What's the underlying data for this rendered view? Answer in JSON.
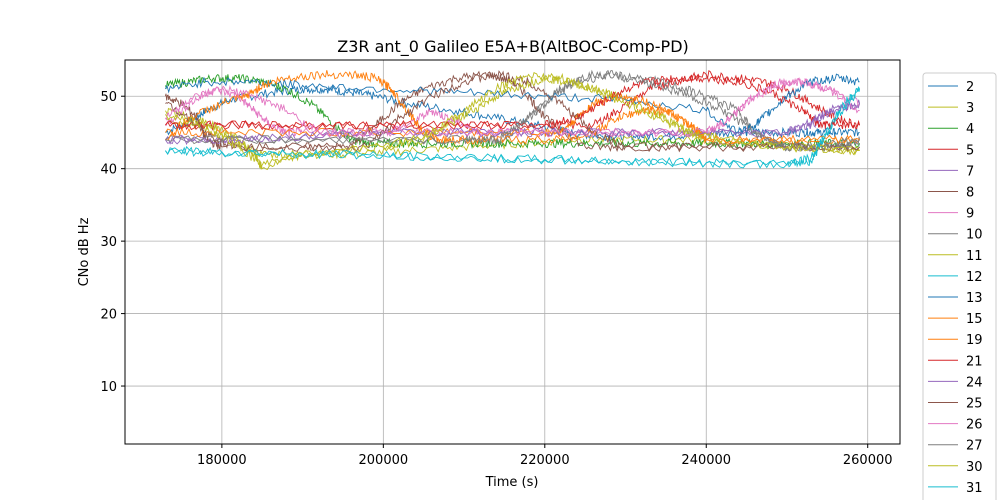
{
  "chart_data": {
    "type": "line",
    "title": "Z3R ant_0 Galileo E5A+B(AltBOC-Comp-PD)",
    "xlabel": "Time (s)",
    "ylabel": "CNo dB Hz",
    "xlim": [
      168000,
      264000
    ],
    "ylim": [
      2,
      55
    ],
    "xticks": [
      180000,
      200000,
      220000,
      240000,
      260000
    ],
    "yticks": [
      10,
      20,
      30,
      40,
      50
    ],
    "grid": true,
    "legend_position": "right-outside",
    "series": [
      {
        "name": "2",
        "color": "#1f77b4",
        "x": [
          173000,
          176000,
          178000,
          181000,
          186000,
          190000,
          193000,
          196000,
          199000,
          203000,
          209000,
          214000,
          219000,
          223000,
          227000,
          231000,
          236000,
          240000,
          244000,
          248000,
          252000,
          254000,
          256000,
          259000
        ],
        "y": [
          45,
          46.5,
          48,
          49.5,
          50.5,
          51,
          51,
          50.5,
          50,
          49,
          48,
          47,
          46,
          45,
          44.5,
          44.5,
          44.5,
          45,
          45,
          45,
          45,
          45,
          45,
          45
        ]
      },
      {
        "name": "3",
        "color": "#bcbd22",
        "x": [
          173000,
          177000,
          181000,
          185000,
          190000,
          196000,
          203000,
          210000,
          217000,
          224000,
          231000,
          238000,
          245000,
          252000,
          259000
        ],
        "y": [
          47,
          46,
          44,
          42,
          42,
          42,
          42.5,
          43,
          43.5,
          44,
          44,
          44,
          43.5,
          43,
          42.5
        ]
      },
      {
        "name": "4",
        "color": "#2ca02c",
        "x": [
          173000,
          176000,
          179000,
          182000,
          185000,
          188000,
          191000,
          194000,
          196000,
          198000,
          201000,
          204000,
          208000,
          212000,
          216000,
          220000,
          224000,
          228000,
          232000,
          236000,
          240000,
          244000,
          248000,
          252000,
          256000,
          259000
        ],
        "y": [
          51.5,
          52,
          52.5,
          52.5,
          52,
          51,
          49,
          46,
          44,
          43.5,
          43.5,
          43.5,
          43.5,
          43.5,
          43.5,
          43.5,
          43.5,
          43.5,
          43.5,
          43.5,
          43.5,
          43.5,
          43.5,
          43.5,
          43.5,
          43.5
        ]
      },
      {
        "name": "5",
        "color": "#d62728",
        "x": [
          173000,
          180000,
          190000,
          200000,
          210000,
          220000,
          226000,
          229000,
          233000,
          236000,
          240000,
          244000,
          247000,
          250000,
          253000,
          256000,
          259000
        ],
        "y": [
          46,
          46,
          46,
          46,
          46,
          46,
          46,
          48,
          51,
          52,
          53,
          52.5,
          52,
          51,
          49,
          47,
          46
        ]
      },
      {
        "name": "7",
        "color": "#9467bd",
        "x": [
          173000,
          180000,
          190000,
          200000,
          210000,
          220000,
          230000,
          240000,
          250000,
          253000,
          256000,
          259000
        ],
        "y": [
          44,
          44,
          44.5,
          45,
          45,
          45,
          45,
          45,
          45,
          46,
          48,
          49
        ]
      },
      {
        "name": "8",
        "color": "#8c564b",
        "x": [
          173000,
          175000,
          177000,
          178000,
          180000,
          190000,
          196000,
          199000,
          202000,
          205000,
          209000,
          213000,
          216000,
          218000,
          220000,
          225000,
          230000,
          240000,
          250000,
          259000
        ],
        "y": [
          50,
          49,
          47,
          44,
          43,
          43,
          43,
          46,
          49,
          51,
          52.5,
          53,
          52,
          50,
          47,
          43,
          43,
          43,
          43,
          43
        ]
      },
      {
        "name": "9",
        "color": "#e377c2",
        "x": [
          173000,
          176000,
          179000,
          182000,
          184000,
          186000,
          188000,
          190000,
          200000,
          203000,
          206000,
          208000,
          210000,
          212000,
          220000,
          230000,
          240000,
          243000,
          246000,
          249000,
          252000,
          255000,
          259000
        ],
        "y": [
          46,
          49,
          51,
          50,
          48,
          46,
          45,
          45,
          45,
          46,
          48,
          47,
          46,
          45,
          45,
          45,
          45,
          47,
          50,
          52,
          52,
          51,
          49
        ]
      },
      {
        "name": "10",
        "color": "#7f7f7f",
        "x": [
          173000,
          190000,
          210000,
          215000,
          218000,
          221000,
          224000,
          228000,
          232000,
          236000,
          240000,
          244000,
          246000,
          248000,
          250000,
          254000,
          257000,
          259000
        ],
        "y": [
          44,
          44,
          44,
          44,
          47,
          50,
          52,
          53,
          52.5,
          51.5,
          50,
          48,
          45,
          44,
          43,
          43,
          43,
          44
        ]
      },
      {
        "name": "11",
        "color": "#bcbd22",
        "x": [
          173000,
          176000,
          179000,
          182000,
          184000,
          185000,
          190000,
          200000,
          205000,
          208000,
          211000,
          214000,
          217000,
          220000,
          223000,
          226000,
          229000,
          232000,
          235000,
          238000,
          240000,
          250000,
          259000
        ],
        "y": [
          48,
          47,
          46,
          44,
          42,
          40,
          42,
          43,
          44,
          46,
          48,
          50,
          51.5,
          52.5,
          52,
          51,
          50,
          48.5,
          47,
          45,
          44,
          43,
          42.5
        ]
      },
      {
        "name": "12",
        "color": "#17becf",
        "x": [
          173000,
          180000,
          190000,
          200000,
          210000,
          220000,
          230000,
          240000,
          250000,
          253000,
          255000,
          257000,
          259000
        ],
        "y": [
          42.5,
          42.3,
          42,
          41.8,
          41.5,
          41.3,
          41,
          40.8,
          40.6,
          41,
          45,
          49,
          51
        ]
      },
      {
        "name": "13",
        "color": "#1f77b4",
        "x": [
          173000,
          178000,
          184000,
          190000,
          200000,
          210000,
          220000,
          230000,
          240000,
          244000,
          246000,
          248000,
          250000,
          253000,
          256000,
          259000
        ],
        "y": [
          51,
          52,
          52,
          51.5,
          51,
          50.5,
          50,
          49.5,
          48,
          45,
          46,
          48,
          50,
          52,
          52.5,
          52
        ]
      },
      {
        "name": "15",
        "color": "#ff7f0e",
        "x": [
          173000,
          176000,
          180000,
          183000,
          185000,
          188000,
          192000,
          196000,
          199000,
          201000,
          203000,
          205000,
          207000,
          210000,
          215000,
          222000,
          226000,
          229000,
          232000,
          235000,
          238000,
          240000,
          250000,
          259000
        ],
        "y": [
          44,
          47,
          49,
          50,
          51.5,
          52.5,
          53,
          53,
          52.5,
          51,
          48,
          45,
          44,
          44,
          44,
          44,
          45,
          47,
          48,
          48,
          46,
          44,
          44,
          44
        ]
      },
      {
        "name": "19",
        "color": "#ff7f0e",
        "x": [
          173000,
          180000,
          190000,
          200000,
          210000,
          220000,
          222000,
          224000,
          226000,
          229000,
          232000,
          235000,
          238000,
          240000,
          250000,
          259000
        ],
        "y": [
          45,
          45,
          45,
          45,
          45,
          45,
          45,
          47,
          49,
          50,
          49.5,
          48,
          46,
          44,
          44,
          44
        ]
      },
      {
        "name": "21",
        "color": "#d62728",
        "x": [
          173000,
          180000,
          190000,
          200000,
          210000,
          220000,
          224000,
          227000,
          230000,
          233000,
          236000,
          240000,
          244000,
          248000,
          252000,
          254000,
          256000,
          259000
        ],
        "y": [
          46,
          46,
          46,
          46,
          46,
          46,
          47,
          49,
          51,
          52,
          52.5,
          52.5,
          52,
          50.5,
          48,
          46,
          46,
          46
        ]
      },
      {
        "name": "24",
        "color": "#9467bd",
        "x": [
          173000,
          180000,
          190000,
          200000,
          210000,
          220000,
          230000,
          240000,
          250000,
          253000,
          255000,
          259000
        ],
        "y": [
          44,
          44,
          44.5,
          45,
          45,
          45,
          45,
          45,
          45,
          46.5,
          48,
          49
        ]
      },
      {
        "name": "25",
        "color": "#8c564b",
        "x": [
          173000,
          176000,
          179000,
          182000,
          190000,
          198000,
          202000,
          206000,
          210000,
          214000,
          218000,
          222000,
          226000,
          230000,
          240000,
          250000,
          259000
        ],
        "y": [
          49,
          47,
          44,
          43,
          43,
          43,
          47,
          50,
          52,
          53,
          52,
          49,
          45,
          43,
          43,
          43,
          43
        ]
      },
      {
        "name": "26",
        "color": "#e377c2",
        "x": [
          173000,
          176000,
          180000,
          184000,
          188000,
          192000,
          200000,
          210000,
          220000,
          230000,
          240000,
          243000,
          246000,
          249000,
          252000,
          255000,
          259000
        ],
        "y": [
          47,
          49.5,
          51,
          50,
          48,
          45,
          45,
          45,
          45,
          45,
          45,
          47,
          50,
          51.5,
          52,
          51,
          48
        ]
      },
      {
        "name": "27",
        "color": "#7f7f7f",
        "x": [
          173000,
          190000,
          210000,
          214000,
          218000,
          222000,
          226000,
          230000,
          234000,
          238000,
          242000,
          246000,
          250000,
          254000,
          259000
        ],
        "y": [
          44,
          44,
          44,
          44,
          47,
          51,
          53,
          52.5,
          51.5,
          50,
          48,
          45,
          43,
          43,
          44
        ]
      },
      {
        "name": "30",
        "color": "#bcbd22",
        "x": [
          173000,
          178000,
          182000,
          185000,
          190000,
          200000,
          206000,
          210000,
          214000,
          218000,
          222000,
          226000,
          230000,
          234000,
          238000,
          242000,
          250000,
          259000
        ],
        "y": [
          47.5,
          46,
          43,
          40.5,
          42,
          43,
          45,
          48,
          51,
          53,
          52.5,
          51,
          49,
          47,
          45,
          44,
          43,
          42.5
        ]
      },
      {
        "name": "31",
        "color": "#17becf",
        "x": [
          173000,
          180000,
          190000,
          200000,
          210000,
          220000,
          230000,
          240000,
          250000,
          253000,
          256000,
          259000
        ],
        "y": [
          42.5,
          42.2,
          42,
          41.8,
          41.5,
          41.2,
          41,
          40.8,
          40.5,
          41.5,
          47,
          51
        ]
      }
    ]
  }
}
